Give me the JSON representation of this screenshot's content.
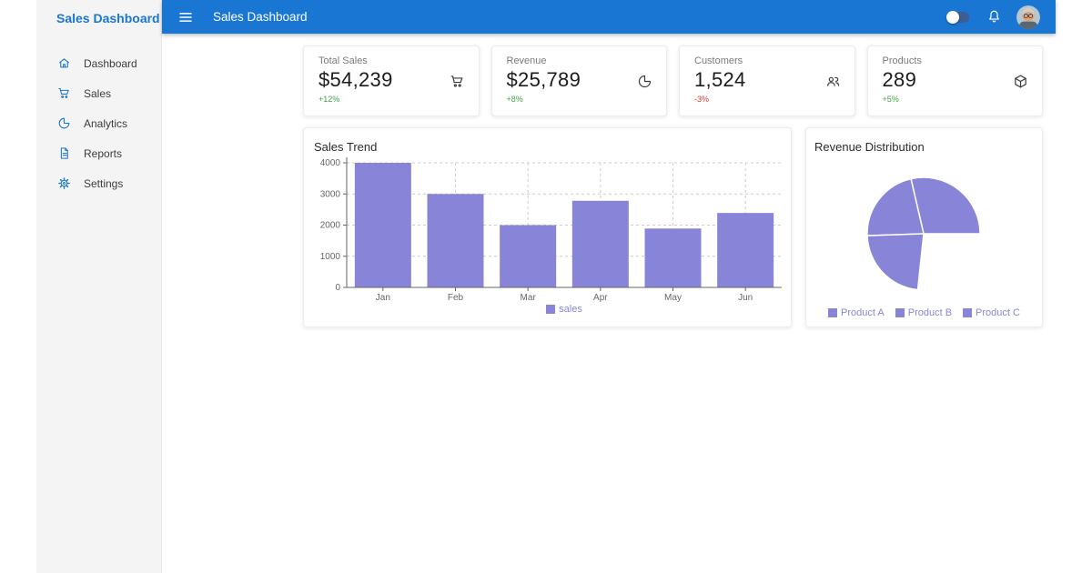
{
  "header": {
    "title": "Sales Dashboard",
    "switch_state": "off",
    "color": "#1976d2"
  },
  "sidebar": {
    "title": "Sales Dashboard",
    "items": [
      {
        "label": "Dashboard",
        "icon": "home-icon"
      },
      {
        "label": "Sales",
        "icon": "cart-icon"
      },
      {
        "label": "Analytics",
        "icon": "pie-chart-icon"
      },
      {
        "label": "Reports",
        "icon": "document-icon"
      },
      {
        "label": "Settings",
        "icon": "gear-icon"
      }
    ]
  },
  "stats": [
    {
      "label": "Total Sales",
      "value": "$54,239",
      "delta": "+12%",
      "delta_color": "#43a047",
      "icon": "cart-icon"
    },
    {
      "label": "Revenue",
      "value": "$25,789",
      "delta": "+8%",
      "delta_color": "#43a047",
      "icon": "pie-chart-icon"
    },
    {
      "label": "Customers",
      "value": "1,524",
      "delta": "-3%",
      "delta_color": "#e53935",
      "icon": "people-icon"
    },
    {
      "label": "Products",
      "value": "289",
      "delta": "+5%",
      "delta_color": "#43a047",
      "icon": "package-icon"
    }
  ],
  "chart_data": [
    {
      "type": "bar",
      "title": "Sales Trend",
      "categories": [
        "Jan",
        "Feb",
        "Mar",
        "Apr",
        "May",
        "Jun"
      ],
      "series": [
        {
          "name": "sales",
          "values": [
            4000,
            3000,
            2000,
            2780,
            1890,
            2390
          ]
        }
      ],
      "xlabel": "",
      "ylabel": "",
      "ylim": [
        0,
        4000
      ],
      "yticks": [
        0,
        1000,
        2000,
        3000,
        4000
      ],
      "bar_color": "#8884d8",
      "grid": "dashed-both",
      "legend_position": "bottom"
    },
    {
      "type": "pie",
      "title": "Revenue Distribution",
      "labels": [
        "Product A",
        "Product B",
        "Product C"
      ],
      "slice_angles_deg": [
        [
          0,
          103
        ],
        [
          103,
          182
        ],
        [
          182,
          264
        ]
      ],
      "approx_percent_of_circle": [
        28.6,
        21.9,
        22.8
      ],
      "start_angle_deg": 0,
      "direction": "counterclockwise",
      "color": "#8884d8",
      "legend_position": "bottom"
    }
  ],
  "colors": {
    "appbar_blue": "#1976d2",
    "accent_purple": "#8884d8",
    "positive_green": "#43a047",
    "negative_red": "#e53935",
    "sidebar_bg": "#f4f4f5"
  }
}
